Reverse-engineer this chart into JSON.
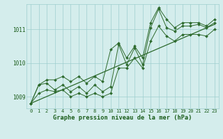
{
  "xlabel": "Graphe pression niveau de la mer (hPa)",
  "hours": [
    0,
    1,
    2,
    3,
    4,
    5,
    6,
    7,
    8,
    9,
    10,
    11,
    12,
    13,
    14,
    15,
    16,
    17,
    18,
    19,
    20,
    21,
    22,
    23
  ],
  "pressure_zigzag": [
    1008.8,
    1009.35,
    1009.4,
    1009.2,
    1009.35,
    1009.15,
    1009.3,
    1009.1,
    1009.35,
    1009.15,
    1009.3,
    1010.55,
    1009.95,
    1010.45,
    1009.95,
    1011.05,
    1011.6,
    1011.05,
    1010.95,
    1011.1,
    1011.1,
    1011.15,
    1011.05,
    1011.2
  ],
  "pressure_upper": [
    1008.8,
    1009.35,
    1009.5,
    1009.5,
    1009.6,
    1009.45,
    1009.6,
    1009.4,
    1009.6,
    1009.45,
    1010.4,
    1010.6,
    1010.15,
    1010.5,
    1010.15,
    1011.2,
    1011.65,
    1011.3,
    1011.05,
    1011.2,
    1011.2,
    1011.2,
    1011.1,
    1011.3
  ],
  "pressure_lower": [
    1008.8,
    1009.1,
    1009.2,
    1009.15,
    1009.2,
    1009.0,
    1009.1,
    1009.0,
    1009.1,
    1009.0,
    1009.1,
    1009.85,
    1009.85,
    1010.15,
    1009.85,
    1010.65,
    1011.1,
    1010.8,
    1010.65,
    1010.85,
    1010.85,
    1010.85,
    1010.8,
    1011.0
  ],
  "trend_line_x": [
    0,
    23
  ],
  "trend_line_y": [
    1008.8,
    1011.15
  ],
  "ylim": [
    1008.65,
    1011.75
  ],
  "yticks": [
    1009,
    1010,
    1011
  ],
  "xlim": [
    -0.5,
    23.5
  ],
  "line_color": "#2d6a2d",
  "bg_color": "#d4edec",
  "grid_color": "#9ecece",
  "label_color": "#1a5c1a",
  "xlabel_color": "#1a5c1a",
  "tick_fontsize": 5.0,
  "xlabel_fontsize": 6.2
}
